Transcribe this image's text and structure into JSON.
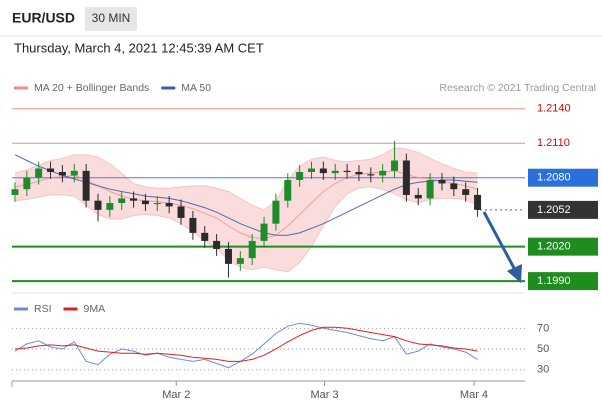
{
  "header": {
    "symbol": "EUR/USD",
    "interval": "30 MIN",
    "timestamp": "Thursday, March 4, 2021 12:45:39 AM CET"
  },
  "credit": "Research © 2021 Trading Central",
  "chart_data": [
    {
      "type": "candlestick",
      "opens": [
        1.2065,
        1.207,
        1.208,
        1.2088,
        1.2085,
        1.2082,
        1.2086,
        1.206,
        1.2052,
        1.2058,
        1.2062,
        1.206,
        1.2057,
        1.2058,
        1.2055,
        1.2045,
        1.2032,
        1.2025,
        1.2018,
        1.2005,
        1.201,
        1.2025,
        1.204,
        1.206,
        1.2078,
        1.2085,
        1.2088,
        1.2084,
        1.2086,
        1.2085,
        1.2083,
        1.2082,
        1.2086,
        1.2095,
        1.2065,
        1.2062,
        1.2078,
        1.2075,
        1.207,
        1.2065
      ],
      "highs": [
        1.2076,
        1.2086,
        1.2094,
        1.2094,
        1.2091,
        1.2092,
        1.2092,
        1.2066,
        1.2064,
        1.2068,
        1.2068,
        1.2066,
        1.2064,
        1.2064,
        1.2061,
        1.2051,
        1.2038,
        1.2031,
        1.2024,
        1.2016,
        1.2031,
        1.2046,
        1.2066,
        1.2084,
        1.2091,
        1.2094,
        1.2094,
        1.2092,
        1.2092,
        1.2091,
        1.2089,
        1.2092,
        1.2112,
        1.2101,
        1.2071,
        1.2084,
        1.2084,
        1.2081,
        1.2076,
        1.2071
      ],
      "lows": [
        1.2059,
        1.2064,
        1.2074,
        1.2079,
        1.2076,
        1.2076,
        1.2054,
        1.2042,
        1.2046,
        1.2052,
        1.2054,
        1.2051,
        1.2051,
        1.2049,
        1.2039,
        1.2026,
        1.2019,
        1.2012,
        1.1993,
        1.1999,
        1.2004,
        1.2019,
        1.2034,
        1.2054,
        1.2072,
        1.2079,
        1.2078,
        1.2078,
        1.2079,
        1.2077,
        1.2076,
        1.2076,
        1.208,
        1.2059,
        1.2056,
        1.2056,
        1.2069,
        1.2064,
        1.2059,
        1.2046
      ],
      "closes": [
        1.207,
        1.208,
        1.2088,
        1.2085,
        1.2082,
        1.2086,
        1.206,
        1.2052,
        1.2058,
        1.2062,
        1.206,
        1.2057,
        1.2058,
        1.2055,
        1.2045,
        1.2032,
        1.2025,
        1.2018,
        1.2005,
        1.201,
        1.2025,
        1.204,
        1.206,
        1.2078,
        1.2085,
        1.2088,
        1.2084,
        1.2086,
        1.2085,
        1.2083,
        1.2082,
        1.2086,
        1.2095,
        1.2065,
        1.2062,
        1.2078,
        1.2075,
        1.207,
        1.2065,
        1.2052
      ],
      "up_color": "#1e8c2a",
      "down_color": "#2b2b2b",
      "series": [
        {
          "name": "MA 20 + Bollinger Bands",
          "color": "#f08c8c",
          "values": [
            1.2072,
            1.2074,
            1.2077,
            1.208,
            1.2081,
            1.2082,
            1.2078,
            1.2073,
            1.2068,
            1.2064,
            1.2061,
            1.206,
            1.2059,
            1.2058,
            1.2056,
            1.2053,
            1.2049,
            1.2045,
            1.2038,
            1.2032,
            1.2028,
            1.2027,
            1.203,
            1.2038,
            1.2048,
            1.2058,
            1.2068,
            1.2075,
            1.208,
            1.2083,
            1.2084,
            1.2085,
            1.2086,
            1.2083,
            1.208,
            1.2079,
            1.2077,
            1.2075,
            1.2073,
            1.207
          ],
          "upper": [
            1.2084,
            1.2087,
            1.2091,
            1.2095,
            1.2097,
            1.21,
            1.21,
            1.2098,
            1.2092,
            1.2084,
            1.2075,
            1.2072,
            1.2071,
            1.2071,
            1.2072,
            1.2073,
            1.2073,
            1.2071,
            1.2068,
            1.2062,
            1.2056,
            1.2052,
            1.206,
            1.2078,
            1.209,
            1.2096,
            1.2098,
            1.2095,
            1.2094,
            1.2095,
            1.2096,
            1.21,
            1.2106,
            1.2105,
            1.2102,
            1.2097,
            1.2092,
            1.2088,
            1.2085,
            1.2084
          ],
          "lower": [
            1.206,
            1.2061,
            1.2063,
            1.2065,
            1.2065,
            1.2064,
            1.2056,
            1.2048,
            1.2044,
            1.2044,
            1.2047,
            1.2048,
            1.2047,
            1.2045,
            1.204,
            1.2033,
            1.2025,
            1.2019,
            1.2008,
            1.2002,
            1.2,
            1.2002,
            1.2,
            1.1998,
            1.2006,
            1.202,
            1.2038,
            1.2055,
            1.2066,
            1.2071,
            1.2072,
            1.207,
            1.2066,
            1.2061,
            1.2058,
            1.2061,
            1.2062,
            1.2062,
            1.2061,
            1.2056
          ]
        },
        {
          "name": "MA 50",
          "color": "#3b5ea8",
          "values": [
            1.21,
            1.2095,
            1.209,
            1.2086,
            1.2082,
            1.2079,
            1.2076,
            1.2073,
            1.207,
            1.2068,
            1.2066,
            1.2064,
            1.2063,
            1.2062,
            1.206,
            1.2057,
            1.2054,
            1.205,
            1.2045,
            1.204,
            1.2036,
            1.2032,
            1.203,
            1.203,
            1.2032,
            1.2036,
            1.204,
            1.2045,
            1.205,
            1.2055,
            1.206,
            1.2065,
            1.207,
            1.2074,
            1.2076,
            1.2077,
            1.2078,
            1.2078,
            1.2077,
            1.2076
          ]
        }
      ],
      "levels": [
        {
          "value": 1.214,
          "label": "1.2140",
          "color": "#f08c8c",
          "label_color": "#e00000",
          "style": "thin"
        },
        {
          "value": 1.211,
          "label": "1.2110",
          "color": "#f08c8c",
          "label_color": "#e00000",
          "style": "thin"
        },
        {
          "value": 1.208,
          "label": "1.2080",
          "color": "#4f7fd9",
          "box": "#2a6fdb",
          "style": "thin"
        },
        {
          "value": 1.2052,
          "label": "1.2052",
          "color": "#666666",
          "box": "#333333",
          "style": "dotted"
        },
        {
          "value": 1.202,
          "label": "1.2020",
          "color": "#1e8c1e",
          "box": "#1e8c1e",
          "style": "thick"
        },
        {
          "value": 1.199,
          "label": "1.1990",
          "color": "#1e8c1e",
          "box": "#1e8c1e",
          "style": "thick"
        }
      ],
      "xlim": [
        -0.25,
        43
      ],
      "ylim": [
        1.1984,
        1.2152
      ]
    },
    {
      "type": "line",
      "series": [
        {
          "name": "RSI",
          "color": "#6c8ed8",
          "values": [
            48,
            55,
            58,
            52,
            50,
            57,
            38,
            35,
            45,
            50,
            48,
            44,
            46,
            42,
            40,
            38,
            40,
            36,
            32,
            38,
            45,
            55,
            65,
            72,
            75,
            73,
            70,
            68,
            66,
            63,
            60,
            58,
            62,
            45,
            48,
            55,
            52,
            50,
            47,
            40
          ]
        },
        {
          "name": "9MA",
          "color": "#e02020",
          "values": [
            50,
            51,
            53,
            54,
            53,
            54,
            51,
            48,
            47,
            46,
            46,
            45,
            46,
            45,
            44,
            42,
            41,
            40,
            38,
            38,
            40,
            44,
            50,
            57,
            63,
            68,
            71,
            71,
            70,
            68,
            66,
            64,
            62,
            58,
            55,
            54,
            53,
            51,
            50,
            48
          ]
        }
      ],
      "xlim": [
        -0.25,
        43
      ],
      "ylim": [
        22,
        80
      ],
      "yticks": [
        70,
        50,
        30
      ],
      "xticks": [
        {
          "value": 13.6,
          "label": "Mar 2"
        },
        {
          "value": 26.1,
          "label": "Mar 3"
        },
        {
          "value": 38.7,
          "label": "Mar 4"
        }
      ]
    }
  ]
}
